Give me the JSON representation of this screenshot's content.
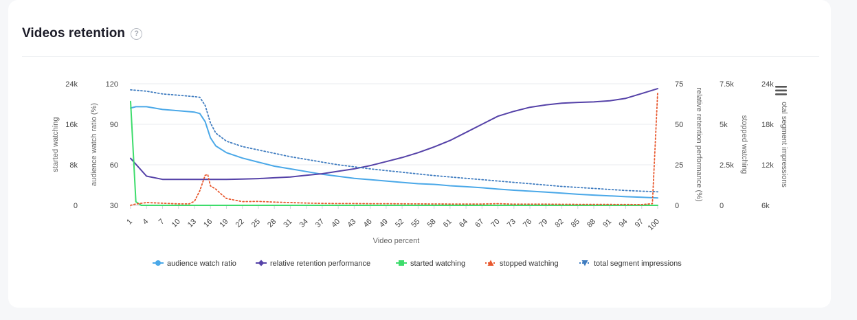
{
  "header": {
    "title": "Videos retention",
    "help_icon": "question-circle-icon"
  },
  "menu_icon": "hamburger-menu-icon",
  "chart_data": {
    "type": "line",
    "xlabel": "Video percent",
    "x_tick_labels": [
      "1",
      "4",
      "7",
      "10",
      "13",
      "16",
      "19",
      "22",
      "25",
      "28",
      "31",
      "34",
      "37",
      "40",
      "43",
      "46",
      "49",
      "52",
      "55",
      "58",
      "61",
      "64",
      "67",
      "70",
      "73",
      "76",
      "79",
      "82",
      "85",
      "88",
      "91",
      "94",
      "97",
      "100"
    ],
    "y_axes": [
      {
        "id": "started",
        "label": "started watching",
        "side": "left",
        "ticks": [
          "0",
          "8k",
          "16k",
          "24k"
        ],
        "range": [
          0,
          24000
        ]
      },
      {
        "id": "ratio",
        "label": "audience watch ratio (%)",
        "side": "left",
        "ticks": [
          "30",
          "60",
          "90",
          "120"
        ],
        "range": [
          30,
          120
        ]
      },
      {
        "id": "relative",
        "label": "relative retention performance (%)",
        "side": "right",
        "ticks": [
          "0",
          "25",
          "50",
          "75"
        ],
        "range": [
          0,
          75
        ]
      },
      {
        "id": "stopped",
        "label": "stopped watching",
        "side": "right",
        "ticks": [
          "0",
          "2.5k",
          "5k",
          "7.5k"
        ],
        "range": [
          0,
          7500
        ]
      },
      {
        "id": "impressions",
        "label": "otal segment impressions",
        "side": "right",
        "ticks": [
          "6k",
          "12k",
          "18k",
          "24k"
        ],
        "range": [
          6000,
          24000
        ]
      }
    ],
    "series": [
      {
        "name": "audience watch ratio",
        "axis": "ratio",
        "color": "#4aa8e8",
        "dash": "solid",
        "marker": "circle",
        "points": [
          [
            1,
            102
          ],
          [
            2,
            103
          ],
          [
            4,
            103
          ],
          [
            7,
            101
          ],
          [
            10,
            100
          ],
          [
            13,
            99
          ],
          [
            14,
            98
          ],
          [
            15,
            92
          ],
          [
            16,
            80
          ],
          [
            17,
            74
          ],
          [
            19,
            69
          ],
          [
            22,
            65
          ],
          [
            25,
            62
          ],
          [
            28,
            59
          ],
          [
            31,
            57
          ],
          [
            34,
            55
          ],
          [
            37,
            53
          ],
          [
            40,
            51.5
          ],
          [
            43,
            50
          ],
          [
            46,
            49
          ],
          [
            49,
            48
          ],
          [
            52,
            47
          ],
          [
            55,
            46
          ],
          [
            58,
            45.5
          ],
          [
            61,
            44.5
          ],
          [
            64,
            43.8
          ],
          [
            67,
            43
          ],
          [
            70,
            42
          ],
          [
            73,
            41.2
          ],
          [
            76,
            40.5
          ],
          [
            79,
            39.8
          ],
          [
            82,
            39
          ],
          [
            85,
            38.2
          ],
          [
            88,
            37.6
          ],
          [
            91,
            37
          ],
          [
            94,
            36.4
          ],
          [
            97,
            36
          ],
          [
            100,
            35.5
          ]
        ]
      },
      {
        "name": "relative retention performance",
        "axis": "relative",
        "color": "#5542a8",
        "dash": "solid",
        "marker": "diamond",
        "points": [
          [
            1,
            29
          ],
          [
            4,
            18
          ],
          [
            7,
            16
          ],
          [
            10,
            16
          ],
          [
            13,
            16
          ],
          [
            16,
            16
          ],
          [
            19,
            16
          ],
          [
            22,
            16.2
          ],
          [
            25,
            16.5
          ],
          [
            28,
            17
          ],
          [
            31,
            17.5
          ],
          [
            34,
            18.5
          ],
          [
            37,
            19.5
          ],
          [
            40,
            21
          ],
          [
            43,
            22.5
          ],
          [
            46,
            24.5
          ],
          [
            49,
            27
          ],
          [
            52,
            29.5
          ],
          [
            55,
            32.5
          ],
          [
            58,
            36
          ],
          [
            61,
            40
          ],
          [
            64,
            45
          ],
          [
            67,
            50
          ],
          [
            70,
            55
          ],
          [
            73,
            58
          ],
          [
            76,
            60.5
          ],
          [
            79,
            62
          ],
          [
            82,
            63
          ],
          [
            85,
            63.5
          ],
          [
            88,
            63.8
          ],
          [
            91,
            64.5
          ],
          [
            94,
            66
          ],
          [
            97,
            69
          ],
          [
            100,
            72
          ]
        ]
      },
      {
        "name": "started watching",
        "axis": "started",
        "color": "#3ddc6b",
        "dash": "solid",
        "marker": "square",
        "points": [
          [
            1,
            20500
          ],
          [
            2,
            700
          ],
          [
            3,
            0
          ],
          [
            100,
            0
          ]
        ]
      },
      {
        "name": "stopped watching",
        "axis": "stopped",
        "color": "#e8582e",
        "dash": "dotted",
        "marker": "triangle",
        "points": [
          [
            1,
            0
          ],
          [
            2,
            80
          ],
          [
            4,
            170
          ],
          [
            7,
            130
          ],
          [
            10,
            90
          ],
          [
            12,
            90
          ],
          [
            13,
            250
          ],
          [
            14,
            900
          ],
          [
            15,
            1850
          ],
          [
            15.5,
            1900
          ],
          [
            16,
            1200
          ],
          [
            17,
            1000
          ],
          [
            18,
            700
          ],
          [
            19,
            420
          ],
          [
            22,
            230
          ],
          [
            25,
            240
          ],
          [
            28,
            200
          ],
          [
            31,
            170
          ],
          [
            34,
            140
          ],
          [
            37,
            120
          ],
          [
            40,
            110
          ],
          [
            43,
            110
          ],
          [
            46,
            100
          ],
          [
            49,
            100
          ],
          [
            52,
            95
          ],
          [
            55,
            90
          ],
          [
            58,
            85
          ],
          [
            61,
            80
          ],
          [
            64,
            80
          ],
          [
            67,
            80
          ],
          [
            70,
            100
          ],
          [
            73,
            70
          ],
          [
            76,
            70
          ],
          [
            79,
            70
          ],
          [
            82,
            65
          ],
          [
            85,
            60
          ],
          [
            88,
            55
          ],
          [
            91,
            55
          ],
          [
            94,
            50
          ],
          [
            97,
            45
          ],
          [
            99,
            100
          ],
          [
            99.5,
            3500
          ],
          [
            100,
            7000
          ]
        ]
      },
      {
        "name": "total segment impressions",
        "axis": "impressions",
        "color": "#3f7cc0",
        "dash": "dotted",
        "marker": "triangle-down",
        "points": [
          [
            1,
            23100
          ],
          [
            4,
            22900
          ],
          [
            7,
            22500
          ],
          [
            10,
            22300
          ],
          [
            13,
            22100
          ],
          [
            14,
            22000
          ],
          [
            15,
            20800
          ],
          [
            16,
            18200
          ],
          [
            17,
            16700
          ],
          [
            19,
            15500
          ],
          [
            22,
            14700
          ],
          [
            25,
            14200
          ],
          [
            28,
            13700
          ],
          [
            31,
            13200
          ],
          [
            34,
            12800
          ],
          [
            37,
            12400
          ],
          [
            40,
            12000
          ],
          [
            43,
            11700
          ],
          [
            46,
            11400
          ],
          [
            49,
            11150
          ],
          [
            52,
            10900
          ],
          [
            55,
            10650
          ],
          [
            58,
            10400
          ],
          [
            61,
            10200
          ],
          [
            64,
            10000
          ],
          [
            67,
            9800
          ],
          [
            70,
            9600
          ],
          [
            73,
            9400
          ],
          [
            76,
            9200
          ],
          [
            79,
            9000
          ],
          [
            82,
            8800
          ],
          [
            85,
            8650
          ],
          [
            88,
            8500
          ],
          [
            91,
            8350
          ],
          [
            94,
            8200
          ],
          [
            97,
            8100
          ],
          [
            100,
            8000
          ]
        ]
      }
    ],
    "legend_position": "bottom-center",
    "grid": true
  }
}
